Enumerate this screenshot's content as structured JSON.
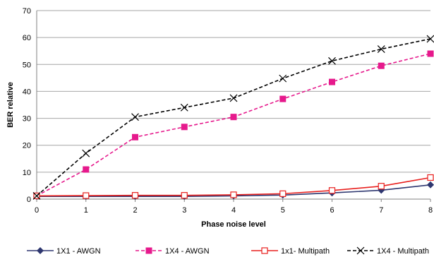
{
  "chart_data": {
    "type": "line",
    "title": "",
    "xlabel": "Phase noise level",
    "ylabel": "BER relative",
    "x": [
      0,
      1,
      2,
      3,
      4,
      5,
      6,
      7,
      8
    ],
    "xlim": [
      0,
      8
    ],
    "ylim": [
      0,
      70
    ],
    "yticks": [
      0,
      10,
      20,
      30,
      40,
      50,
      60,
      70
    ],
    "grid": true,
    "legend_position": "bottom",
    "series": [
      {
        "name": "1X1 - AWGN",
        "values": [
          1,
          1,
          1,
          1,
          1.2,
          1.5,
          2.3,
          3.3,
          5.3
        ],
        "color": "#2e3770",
        "marker": "diamond",
        "dash": "solid"
      },
      {
        "name": "1X4 - AWGN",
        "values": [
          1.2,
          11,
          23,
          26.8,
          30.5,
          37.2,
          43.5,
          49.5,
          54
        ],
        "color": "#e6198c",
        "marker": "square",
        "dash": "dashed"
      },
      {
        "name": "1x1- Multipath",
        "values": [
          1.2,
          1.3,
          1.4,
          1.4,
          1.6,
          2,
          3.2,
          4.8,
          8
        ],
        "color": "#e8201e",
        "marker": "hollow-square",
        "dash": "solid"
      },
      {
        "name": "1X4 - Multipath",
        "values": [
          1.2,
          17,
          30.5,
          34,
          37.5,
          44.8,
          51.3,
          55.7,
          59.5
        ],
        "color": "#000000",
        "marker": "x",
        "dash": "dashed"
      }
    ]
  }
}
